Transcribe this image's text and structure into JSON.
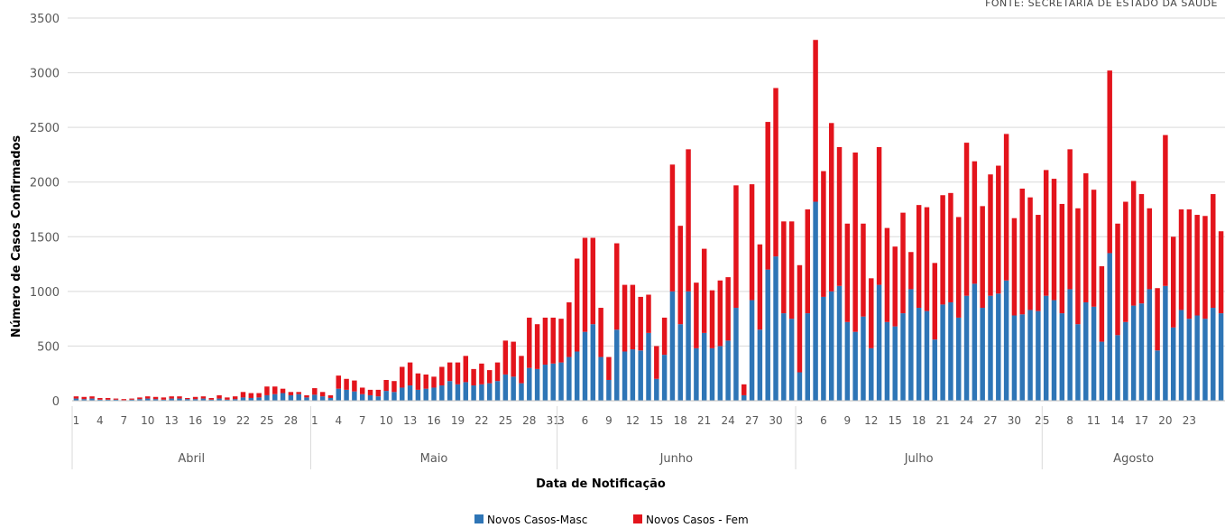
{
  "source_note": "FONTE: SECRETARIA DE ESTADO DA SAÚDE",
  "chart_data": {
    "type": "bar",
    "stacked": true,
    "xlabel": "Data de Notificação",
    "ylabel": "Número de Casos Confirmados",
    "ylim": [
      0,
      3500
    ],
    "yticks": [
      0,
      500,
      1000,
      1500,
      2000,
      2500,
      3000,
      3500
    ],
    "grid": true,
    "legend_position": "bottom",
    "months": [
      {
        "label": "Abril",
        "days": 30
      },
      {
        "label": "Maio",
        "days": 31
      },
      {
        "label": "Junho",
        "days": 30
      },
      {
        "label": "Julho",
        "days": 31
      },
      {
        "label": "Agosto",
        "days": 23
      }
    ],
    "tick_labels": [
      "1",
      "4",
      "7",
      "10",
      "13",
      "16",
      "19",
      "22",
      "25",
      "28",
      "1",
      "4",
      "7",
      "10",
      "13",
      "16",
      "19",
      "22",
      "25",
      "28",
      "31",
      "3",
      "6",
      "9",
      "12",
      "15",
      "18",
      "21",
      "24",
      "27",
      "30",
      "3",
      "6",
      "9",
      "12",
      "15",
      "18",
      "21",
      "24",
      "27",
      "30",
      "2",
      "5",
      "8",
      "11",
      "14",
      "17",
      "20",
      "23"
    ],
    "series": [
      {
        "name": "Novos Casos-Masc",
        "color": "#2e75b6",
        "values": [
          20,
          15,
          20,
          10,
          10,
          10,
          5,
          10,
          15,
          20,
          15,
          10,
          20,
          20,
          15,
          15,
          20,
          10,
          20,
          10,
          15,
          30,
          25,
          30,
          50,
          60,
          70,
          50,
          60,
          30,
          55,
          40,
          25,
          110,
          100,
          85,
          60,
          50,
          40,
          90,
          80,
          120,
          140,
          100,
          110,
          120,
          140,
          180,
          150,
          170,
          140,
          150,
          160,
          180,
          240,
          220,
          160,
          300,
          290,
          330,
          340,
          350,
          400,
          450,
          630,
          700,
          400,
          190,
          650,
          450,
          470,
          460,
          620,
          200,
          420,
          1000,
          700,
          1000,
          480,
          620,
          480,
          500,
          550,
          850,
          50,
          920,
          650,
          1200,
          1320,
          800,
          750,
          260,
          800,
          1820,
          950,
          1000,
          1050,
          720,
          630,
          770,
          480,
          1060,
          720,
          680,
          800,
          1020,
          850,
          820,
          560,
          880,
          900,
          760,
          960,
          1070,
          850,
          960,
          980,
          1100,
          780,
          790,
          830,
          820,
          960,
          920,
          800,
          1020,
          700,
          900,
          860,
          540,
          1350,
          600,
          720,
          870,
          890,
          1020,
          460,
          1050,
          670,
          830,
          750,
          780,
          750,
          850,
          800
        ]
      },
      {
        "name": "Novos Casos - Fem",
        "color": "#e3141c",
        "values": [
          20,
          20,
          20,
          15,
          15,
          10,
          10,
          10,
          15,
          20,
          20,
          20,
          20,
          20,
          10,
          20,
          20,
          15,
          30,
          20,
          25,
          50,
          45,
          40,
          80,
          70,
          40,
          30,
          20,
          20,
          60,
          40,
          25,
          120,
          100,
          100,
          60,
          50,
          60,
          100,
          100,
          190,
          210,
          150,
          130,
          100,
          170,
          170,
          200,
          240,
          150,
          190,
          120,
          170,
          310,
          320,
          250,
          460,
          410,
          430,
          420,
          400,
          500,
          850,
          860,
          790,
          450,
          210,
          790,
          610,
          590,
          490,
          350,
          300,
          340,
          1160,
          900,
          1300,
          600,
          770,
          530,
          600,
          580,
          1120,
          100,
          1060,
          780,
          1350,
          1540,
          840,
          890,
          980,
          950,
          1480,
          1150,
          1540,
          1270,
          900,
          1640,
          850,
          640,
          1260,
          860,
          730,
          920,
          340,
          940,
          950,
          700,
          1000,
          1000,
          920,
          1400,
          1120,
          930,
          1110,
          1170,
          1340,
          890,
          1150,
          1030,
          880,
          1150,
          1110,
          1000,
          1280,
          1060,
          1180,
          1070,
          690,
          1670,
          1020,
          1100,
          1140,
          1000,
          740,
          570,
          1380,
          830,
          920,
          1000,
          920,
          940,
          1040,
          750
        ]
      }
    ]
  }
}
